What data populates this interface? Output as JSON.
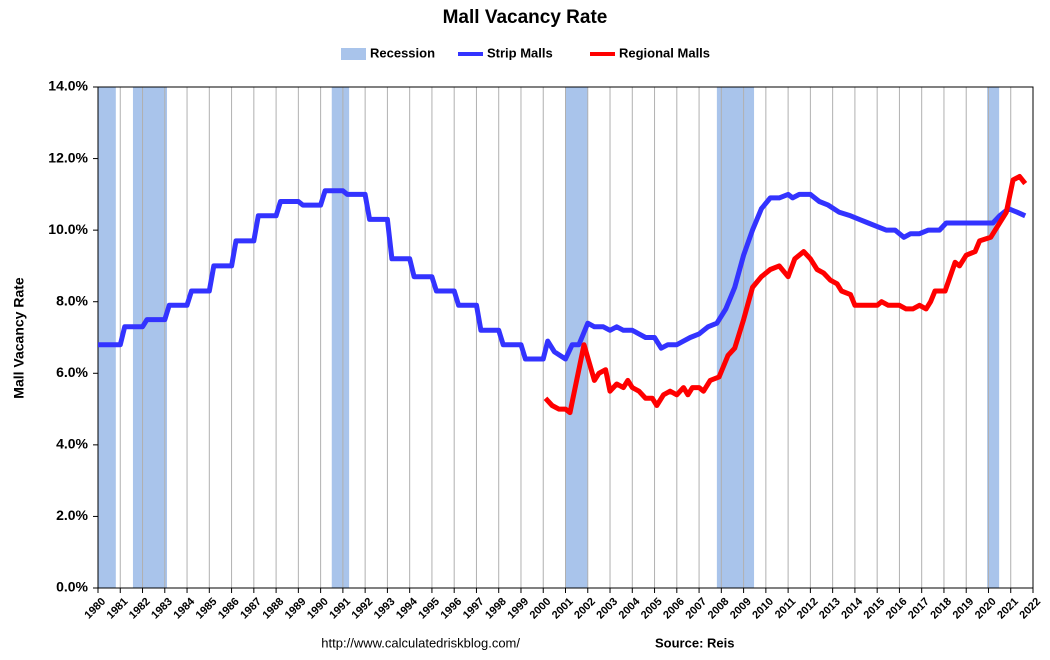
{
  "chart_data": {
    "type": "line",
    "title": "Mall Vacancy Rate",
    "ylabel": "Mall Vacancy Rate",
    "footer_url": "http://www.calculatedriskblog.com/",
    "footer_source": "Source: Reis",
    "xlim": [
      1980,
      2022
    ],
    "xticks": [
      1980,
      1981,
      1982,
      1983,
      1984,
      1985,
      1986,
      1987,
      1988,
      1989,
      1990,
      1991,
      1992,
      1993,
      1994,
      1995,
      1996,
      1997,
      1998,
      1999,
      2000,
      2001,
      2002,
      2003,
      2004,
      2005,
      2006,
      2007,
      2008,
      2009,
      2010,
      2011,
      2012,
      2013,
      2014,
      2015,
      2016,
      2017,
      2018,
      2019,
      2020,
      2021,
      2022
    ],
    "ylim": [
      0,
      14
    ],
    "yticks": [
      {
        "value": 0,
        "label": "0.0%"
      },
      {
        "value": 2,
        "label": "2.0%"
      },
      {
        "value": 4,
        "label": "4.0%"
      },
      {
        "value": 6,
        "label": "6.0%"
      },
      {
        "value": 8,
        "label": "8.0%"
      },
      {
        "value": 10,
        "label": "10.0%"
      },
      {
        "value": 12,
        "label": "12.0%"
      },
      {
        "value": 14,
        "label": "14.0%"
      }
    ],
    "grid": true,
    "legend": "top",
    "recession": {
      "name": "Recession",
      "color": "#a9c4eb",
      "periods": [
        [
          1980.0,
          1980.8
        ],
        [
          1981.57,
          1983.1
        ],
        [
          1990.5,
          1991.28
        ],
        [
          2000.98,
          2002.0
        ],
        [
          2007.8,
          2009.47
        ],
        [
          2019.94,
          2020.48
        ]
      ]
    },
    "series": [
      {
        "name": "Strip Malls",
        "color": "#3333ff",
        "x": [
          1980,
          1981,
          1981.2,
          1982,
          1982.2,
          1983,
          1983.2,
          1984,
          1984.2,
          1985,
          1985.2,
          1986,
          1986.2,
          1987,
          1987.2,
          1988,
          1988.2,
          1989,
          1989.2,
          1990,
          1990.2,
          1991,
          1991.2,
          1992,
          1992.2,
          1993,
          1993.2,
          1994,
          1994.2,
          1995,
          1995.2,
          1996,
          1996.2,
          1997,
          1997.2,
          1998,
          1998.2,
          1999,
          1999.2,
          2000,
          2000.2,
          2000.5,
          2001,
          2001.3,
          2001.6,
          2002,
          2002.3,
          2002.7,
          2003,
          2003.3,
          2003.6,
          2004,
          2004.3,
          2004.6,
          2005,
          2005.3,
          2005.6,
          2006,
          2006.3,
          2006.6,
          2007,
          2007.4,
          2007.8,
          2008.2,
          2008.6,
          2009,
          2009.4,
          2009.8,
          2010.2,
          2010.6,
          2011,
          2011.2,
          2011.5,
          2012,
          2012.4,
          2012.8,
          2013.3,
          2013.8,
          2014.2,
          2014.6,
          2015,
          2015.4,
          2015.8,
          2016.2,
          2016.5,
          2016.9,
          2017.3,
          2017.8,
          2018.1,
          2018.8,
          2019.5,
          2020.2,
          2020.5,
          2020.9,
          2021.3,
          2021.65
        ],
        "values": [
          6.8,
          6.8,
          7.3,
          7.3,
          7.5,
          7.5,
          7.9,
          7.9,
          8.3,
          8.3,
          9.0,
          9.0,
          9.7,
          9.7,
          10.4,
          10.4,
          10.8,
          10.8,
          10.7,
          10.7,
          11.1,
          11.1,
          11.0,
          11.0,
          10.3,
          10.3,
          9.2,
          9.2,
          8.7,
          8.7,
          8.3,
          8.3,
          7.9,
          7.9,
          7.2,
          7.2,
          6.8,
          6.8,
          6.4,
          6.4,
          6.9,
          6.6,
          6.4,
          6.8,
          6.8,
          7.4,
          7.3,
          7.3,
          7.2,
          7.3,
          7.2,
          7.2,
          7.1,
          7.0,
          7.0,
          6.7,
          6.8,
          6.8,
          6.9,
          7.0,
          7.1,
          7.3,
          7.4,
          7.8,
          8.4,
          9.3,
          10.0,
          10.6,
          10.9,
          10.9,
          11.0,
          10.9,
          11.0,
          11.0,
          10.8,
          10.7,
          10.5,
          10.4,
          10.3,
          10.2,
          10.1,
          10.0,
          10.0,
          9.8,
          9.9,
          9.9,
          10.0,
          10.0,
          10.2,
          10.2,
          10.2,
          10.2,
          10.4,
          10.6,
          10.5,
          10.4
        ]
      },
      {
        "name": "Regional Malls",
        "color": "#ff0000",
        "x": [
          2000.1,
          2000.4,
          2000.7,
          2001,
          2001.2,
          2001.83,
          2002.3,
          2002.5,
          2002.8,
          2003,
          2003.3,
          2003.6,
          2003.8,
          2004,
          2004.3,
          2004.6,
          2004.9,
          2005.1,
          2005.4,
          2005.7,
          2006,
          2006.3,
          2006.5,
          2006.7,
          2007,
          2007.2,
          2007.5,
          2007.9,
          2008.3,
          2008.6,
          2009,
          2009.4,
          2009.8,
          2010.2,
          2010.6,
          2011,
          2011.3,
          2011.7,
          2012,
          2012.3,
          2012.6,
          2012.9,
          2013.2,
          2013.4,
          2013.8,
          2014,
          2014.5,
          2015,
          2015.2,
          2015.5,
          2016,
          2016.3,
          2016.6,
          2016.9,
          2017.2,
          2017.4,
          2017.6,
          2018.05,
          2018.5,
          2018.7,
          2019,
          2019.4,
          2019.6,
          2020.1,
          2020.5,
          2020.8,
          2021.1,
          2021.4,
          2021.65
        ],
        "values": [
          5.3,
          5.1,
          5.0,
          5.0,
          4.9,
          6.8,
          5.8,
          6.0,
          6.1,
          5.5,
          5.7,
          5.6,
          5.8,
          5.6,
          5.5,
          5.3,
          5.3,
          5.1,
          5.4,
          5.5,
          5.4,
          5.6,
          5.4,
          5.6,
          5.6,
          5.5,
          5.8,
          5.9,
          6.5,
          6.7,
          7.5,
          8.4,
          8.7,
          8.9,
          9.0,
          8.7,
          9.2,
          9.4,
          9.2,
          8.9,
          8.8,
          8.6,
          8.5,
          8.3,
          8.2,
          7.9,
          7.9,
          7.9,
          8.0,
          7.9,
          7.9,
          7.8,
          7.8,
          7.9,
          7.8,
          8.0,
          8.3,
          8.3,
          9.1,
          9.0,
          9.3,
          9.4,
          9.7,
          9.8,
          10.2,
          10.5,
          11.4,
          11.5,
          11.3
        ]
      }
    ]
  }
}
